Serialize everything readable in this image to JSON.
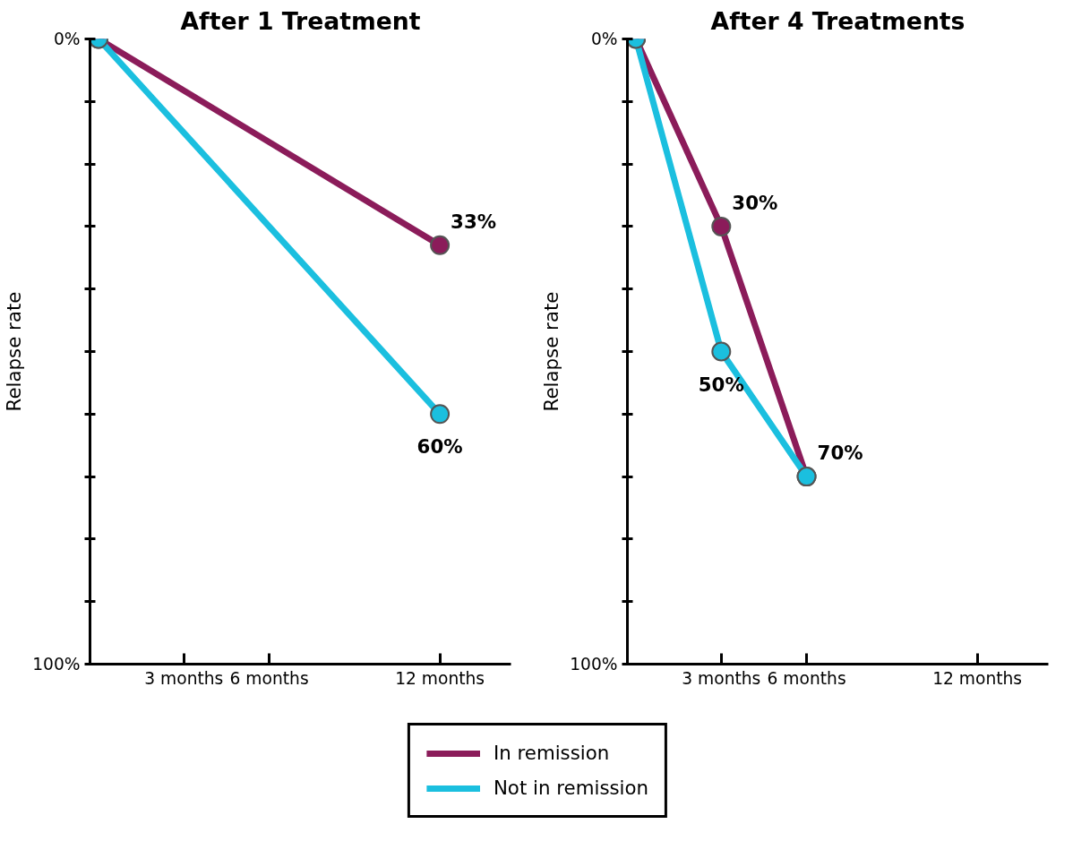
{
  "chart_data": [
    {
      "type": "line",
      "title": "After 1 Treatment",
      "ylabel": "Relapse rate",
      "xlim": [
        -0.3,
        14.5
      ],
      "xticks": [
        {
          "value": 3,
          "label": "3 months"
        },
        {
          "value": 6,
          "label": "6 months"
        },
        {
          "value": 12,
          "label": "12 months"
        }
      ],
      "ylim": [
        100,
        0
      ],
      "yticks": [
        {
          "value": 0,
          "label": "0%"
        },
        {
          "value": 10,
          "label": null
        },
        {
          "value": 20,
          "label": null
        },
        {
          "value": 30,
          "label": null
        },
        {
          "value": 40,
          "label": null
        },
        {
          "value": 50,
          "label": null
        },
        {
          "value": 60,
          "label": null
        },
        {
          "value": 70,
          "label": null
        },
        {
          "value": 80,
          "label": null
        },
        {
          "value": 90,
          "label": null
        },
        {
          "value": 100,
          "label": "100%"
        }
      ],
      "series": [
        {
          "name": "In remission",
          "color": "#8b1c5a",
          "x": [
            0,
            12
          ],
          "values": [
            0,
            33
          ],
          "value_labels": [
            null,
            "33%"
          ]
        },
        {
          "name": "Not in remission",
          "color": "#1bbfdf",
          "x": [
            0,
            12
          ],
          "values": [
            0,
            60
          ],
          "value_labels": [
            null,
            "60%"
          ]
        }
      ],
      "marker": "circle",
      "grid": false,
      "legend": "bottom"
    },
    {
      "type": "line",
      "title": "After 4 Treatments",
      "ylabel": "Relapse rate",
      "xlim": [
        -0.3,
        14.5
      ],
      "xticks": [
        {
          "value": 3,
          "label": "3 months"
        },
        {
          "value": 6,
          "label": "6 months"
        },
        {
          "value": 12,
          "label": "12 months"
        }
      ],
      "ylim": [
        100,
        0
      ],
      "yticks": [
        {
          "value": 0,
          "label": "0%"
        },
        {
          "value": 10,
          "label": null
        },
        {
          "value": 20,
          "label": null
        },
        {
          "value": 30,
          "label": null
        },
        {
          "value": 40,
          "label": null
        },
        {
          "value": 50,
          "label": null
        },
        {
          "value": 60,
          "label": null
        },
        {
          "value": 70,
          "label": null
        },
        {
          "value": 80,
          "label": null
        },
        {
          "value": 90,
          "label": null
        },
        {
          "value": 100,
          "label": "100%"
        }
      ],
      "series": [
        {
          "name": "In remission",
          "color": "#8b1c5a",
          "x": [
            0,
            3,
            6
          ],
          "values": [
            0,
            30,
            70
          ],
          "value_labels": [
            null,
            "30%",
            "70%"
          ]
        },
        {
          "name": "Not in remission",
          "color": "#1bbfdf",
          "x": [
            0,
            3,
            6
          ],
          "values": [
            0,
            50,
            70
          ],
          "value_labels": [
            null,
            "50%",
            null
          ]
        }
      ],
      "marker": "circle",
      "grid": false
    }
  ]
}
